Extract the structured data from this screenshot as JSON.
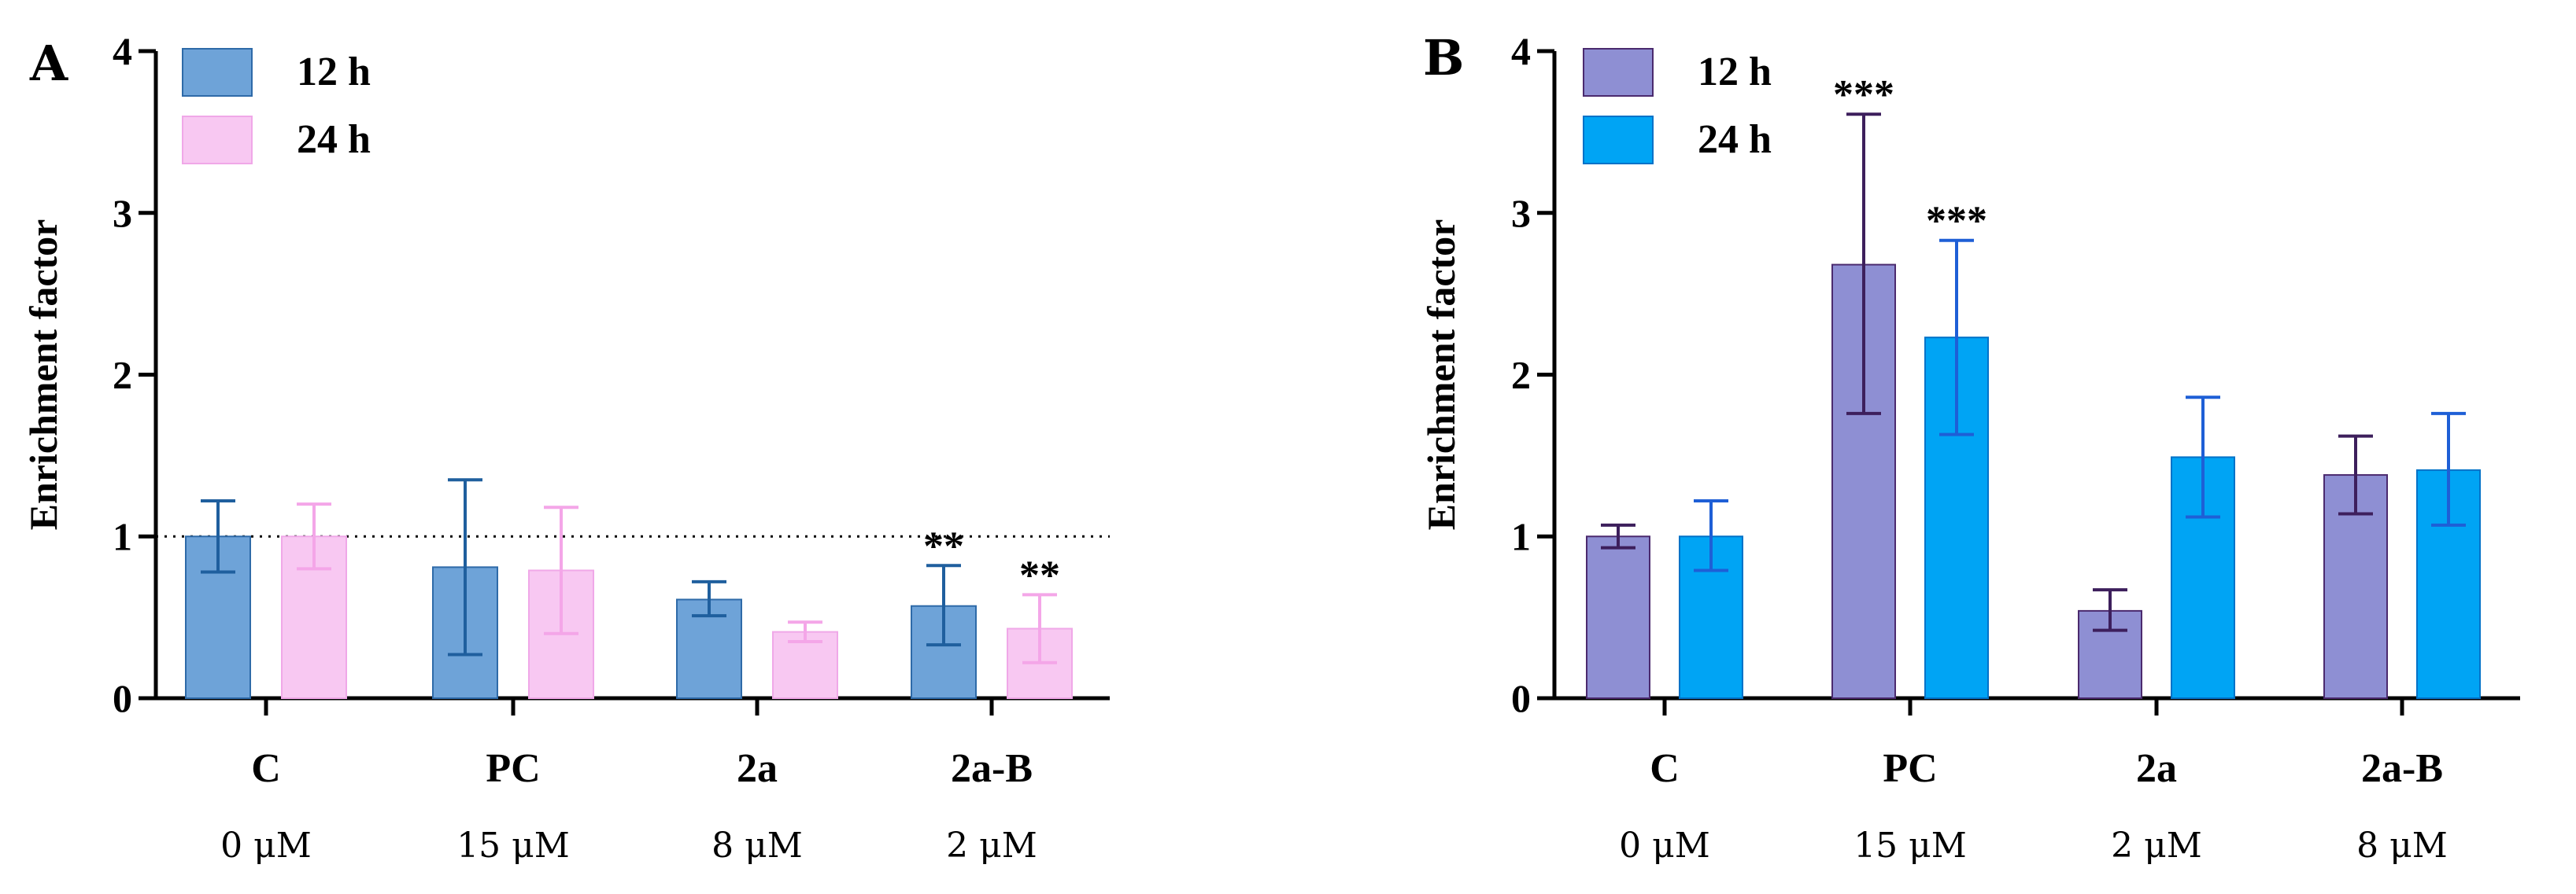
{
  "chart_data": [
    {
      "panel": "A",
      "type": "bar",
      "ylabel": "Enrichment factor",
      "ylim": [
        0,
        4
      ],
      "yticks": [
        "0",
        "1",
        "2",
        "3",
        "4"
      ],
      "categories": [
        "C",
        "PC",
        "2a",
        "2a-B"
      ],
      "concentrations": [
        "0 μM",
        "15 μM",
        "8 μM",
        "2 μM"
      ],
      "reference_line": 1,
      "series": [
        {
          "name": "12 h",
          "fill": "#6ea3d8",
          "stroke": "#2e6aa8",
          "error": "#1f5f9e",
          "values": [
            1.0,
            0.81,
            0.61,
            0.57
          ],
          "err_low": [
            0.78,
            0.27,
            0.51,
            0.33
          ],
          "err_high": [
            1.22,
            1.35,
            0.72,
            0.82
          ],
          "annotations": [
            "",
            "",
            "",
            "**"
          ]
        },
        {
          "name": "24 h",
          "fill": "#f8c8f2",
          "stroke": "#f0a8e8",
          "error": "#f4a6e8",
          "values": [
            1.0,
            0.79,
            0.41,
            0.43
          ],
          "err_low": [
            0.8,
            0.4,
            0.35,
            0.22
          ],
          "err_high": [
            1.2,
            1.18,
            0.47,
            0.64
          ],
          "annotations": [
            "",
            "",
            "",
            "**"
          ]
        }
      ]
    },
    {
      "panel": "B",
      "type": "bar",
      "ylabel": "Enrichment factor",
      "ylim": [
        0,
        4
      ],
      "yticks": [
        "0",
        "1",
        "2",
        "3",
        "4"
      ],
      "categories": [
        "C",
        "PC",
        "2a",
        "2a-B"
      ],
      "concentrations": [
        "0 μM",
        "15 μM",
        "2 μM",
        "8 μM"
      ],
      "series": [
        {
          "name": "12 h",
          "fill": "#8e8fd3",
          "stroke": "#4b2a6e",
          "error": "#3d1f5c",
          "values": [
            1.0,
            2.68,
            0.54,
            1.38
          ],
          "err_low": [
            0.93,
            1.76,
            0.42,
            1.14
          ],
          "err_high": [
            1.07,
            3.61,
            0.67,
            1.62
          ],
          "annotations": [
            "",
            "***",
            "",
            ""
          ]
        },
        {
          "name": "24 h",
          "fill": "#00a4f4",
          "stroke": "#0072c8",
          "error": "#1e5fd6",
          "values": [
            1.0,
            2.23,
            1.49,
            1.41
          ],
          "err_low": [
            0.79,
            1.63,
            1.12,
            1.07
          ],
          "err_high": [
            1.22,
            2.83,
            1.86,
            1.76
          ],
          "annotations": [
            "",
            "***",
            "",
            ""
          ]
        }
      ]
    }
  ]
}
